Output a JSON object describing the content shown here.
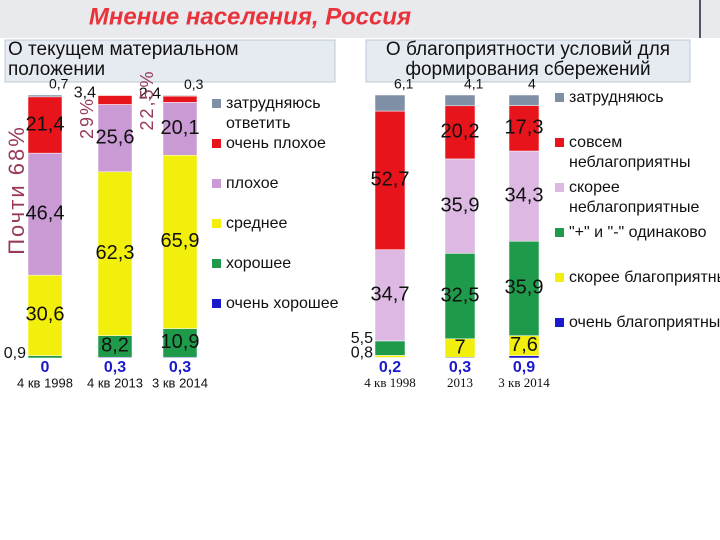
{
  "slide_title": "Мнение населения, Россия",
  "chart_data": [
    {
      "type": "stacked-bar",
      "title": "О текущем материальном положении",
      "categories": [
        "4 кв 1998",
        "4 кв 2013",
        "3 кв 2014"
      ],
      "ylim": [
        0,
        100
      ],
      "annotations": [
        "Почти 68%",
        "29%",
        "22,5%"
      ],
      "series": [
        {
          "name": "очень хорошее",
          "color": "#1a1acc",
          "values": [
            0,
            0.3,
            0.3
          ],
          "value_labels": [
            "0",
            "0,3",
            "0,3"
          ]
        },
        {
          "name": "хорошее",
          "color": "#1e9a4a",
          "values": [
            0.9,
            8.2,
            10.9
          ],
          "value_labels": [
            "0,9",
            "8,2",
            "10,9"
          ]
        },
        {
          "name": "среднее",
          "color": "#f2ef0c",
          "values": [
            30.6,
            62.3,
            65.9
          ],
          "value_labels": [
            "30,6",
            "62,3",
            "65,9"
          ]
        },
        {
          "name": "плохое",
          "color": "#c99ad3",
          "values": [
            46.4,
            25.6,
            20.1
          ],
          "value_labels": [
            "46,4",
            "25,6",
            "20,1"
          ]
        },
        {
          "name": "очень плохое",
          "color": "#e8141c",
          "values": [
            21.4,
            3.4,
            2.4
          ],
          "value_labels": [
            "21,4",
            "3,4",
            "2,4"
          ]
        },
        {
          "name": "затрудняюсь ответить",
          "color": "#7f8fa6",
          "values": [
            0.7,
            null,
            0.3
          ],
          "value_labels": [
            "0,7",
            null,
            "0,3"
          ]
        }
      ]
    },
    {
      "type": "stacked-bar",
      "title": "О благоприятности условий для формирования сбережений",
      "categories": [
        "4 кв 1998",
        "2013",
        "3 кв 2014"
      ],
      "ylim": [
        0,
        100
      ],
      "series": [
        {
          "name": "очень благоприятны",
          "color": "#1a1acc",
          "values": [
            0.2,
            0.3,
            0.9
          ],
          "value_labels": [
            "0,2",
            "0,3",
            "0,9"
          ]
        },
        {
          "name": "скорее благоприятны",
          "color": "#f2ef0c",
          "values": [
            0.8,
            7,
            7.6
          ],
          "value_labels": [
            "0,8",
            "7",
            "7,6"
          ]
        },
        {
          "name": "\"+\" и \"-\" одинаково",
          "color": "#1e9a4a",
          "values": [
            5.5,
            32.5,
            35.9
          ],
          "value_labels": [
            "5,5",
            "32,5",
            "35,9"
          ]
        },
        {
          "name": "скорее неблагоприятные",
          "color": "#dcb8e2",
          "values": [
            34.7,
            35.9,
            34.3
          ],
          "value_labels": [
            "34,7",
            "35,9",
            "34,3"
          ]
        },
        {
          "name": "совсем неблагоприятны",
          "color": "#e8141c",
          "values": [
            52.7,
            20.2,
            17.3
          ],
          "value_labels": [
            "52,7",
            "20,2",
            "17,3"
          ]
        },
        {
          "name": "затрудняюсь",
          "color": "#7f8fa6",
          "values": [
            6.1,
            4.1,
            4
          ],
          "value_labels": [
            "6,1",
            "4,1",
            "4"
          ]
        }
      ]
    }
  ]
}
